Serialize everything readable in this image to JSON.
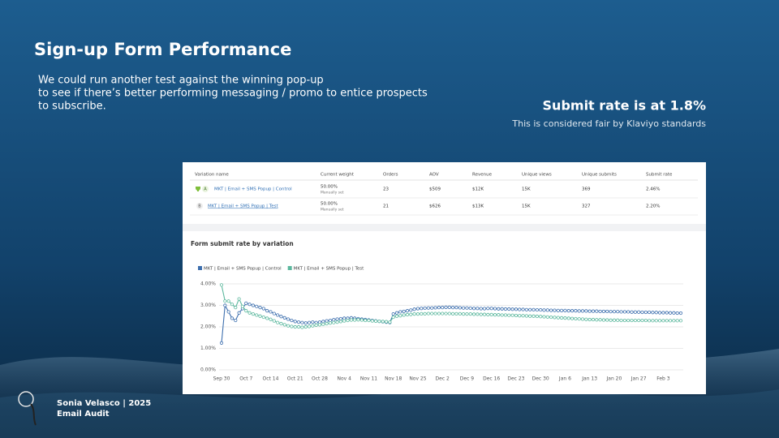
{
  "header": {
    "title": "Sign-up Form Performance",
    "body": [
      "We could run another test against the winning pop-up",
      "to see if there’s better performing messaging / promo to entice prospects",
      "to subscribe."
    ]
  },
  "callout": {
    "headline": "Submit rate is at 1.8%",
    "note": "This is considered fair by Klaviyo standards"
  },
  "table": {
    "headers": [
      "Variation name",
      "Current weight",
      "Orders",
      "AOV",
      "Revenue",
      "Unique views",
      "Unique submits",
      "Submit rate"
    ],
    "rows": [
      {
        "badge": "A",
        "name": "MKT | Email + SMS Popup | Control",
        "weight": "50.00%",
        "weight_note": "Manually set",
        "cells": [
          "23",
          "$509",
          "$12K",
          "15K",
          "369",
          "2.46%"
        ]
      },
      {
        "badge": "B",
        "name": "MKT | Email + SMS Popup | Test",
        "weight": "50.00%",
        "weight_note": "Manually set",
        "cells": [
          "21",
          "$626",
          "$13K",
          "15K",
          "327",
          "2.20%"
        ]
      }
    ]
  },
  "chart_data": {
    "type": "line",
    "title": "Form submit rate by variation",
    "categories": [
      "Sep 30",
      null,
      null,
      null,
      null,
      null,
      null,
      "Oct 7",
      null,
      null,
      null,
      null,
      null,
      null,
      "Oct 14",
      null,
      null,
      null,
      null,
      null,
      null,
      "Oct 21",
      null,
      null,
      null,
      null,
      null,
      null,
      "Oct 28",
      null,
      null,
      null,
      null,
      null,
      null,
      "Nov 4",
      null,
      null,
      null,
      null,
      null,
      null,
      "Nov 11",
      null,
      null,
      null,
      null,
      null,
      null,
      "Nov 18",
      null,
      null,
      null,
      null,
      null,
      null,
      "Nov 25",
      null,
      null,
      null,
      null,
      null,
      null,
      "Dec 2",
      null,
      null,
      null,
      null,
      null,
      null,
      "Dec 9",
      null,
      null,
      null,
      null,
      null,
      null,
      "Dec 16",
      null,
      null,
      null,
      null,
      null,
      null,
      "Dec 23",
      null,
      null,
      null,
      null,
      null,
      null,
      "Dec 30",
      null,
      null,
      null,
      null,
      null,
      null,
      "Jan 6",
      null,
      null,
      null,
      null,
      null,
      null,
      "Jan 13",
      null,
      null,
      null,
      null,
      null,
      null,
      "Jan 20",
      null,
      null,
      null,
      null,
      null,
      null,
      "Jan 27",
      null,
      null,
      null,
      null,
      null,
      null,
      "Feb 3",
      null,
      null,
      null,
      null,
      null
    ],
    "series": [
      {
        "name": "MKT | Email + SMS Popup | Control",
        "color": "#3d6fae",
        "values": [
          1.25,
          3.0,
          2.7,
          2.4,
          2.3,
          2.65,
          2.85,
          3.1,
          3.05,
          3.0,
          2.95,
          2.9,
          2.85,
          2.75,
          2.7,
          2.62,
          2.55,
          2.48,
          2.42,
          2.36,
          2.3,
          2.25,
          2.22,
          2.2,
          2.18,
          2.2,
          2.22,
          2.2,
          2.22,
          2.25,
          2.28,
          2.3,
          2.33,
          2.36,
          2.38,
          2.4,
          2.4,
          2.42,
          2.4,
          2.38,
          2.36,
          2.34,
          2.32,
          2.3,
          2.28,
          2.26,
          2.24,
          2.22,
          2.2,
          2.6,
          2.65,
          2.7,
          2.72,
          2.75,
          2.78,
          2.82,
          2.85,
          2.86,
          2.87,
          2.88,
          2.88,
          2.89,
          2.9,
          2.9,
          2.91,
          2.91,
          2.9,
          2.9,
          2.89,
          2.88,
          2.88,
          2.87,
          2.86,
          2.86,
          2.85,
          2.85,
          2.86,
          2.86,
          2.85,
          2.84,
          2.84,
          2.83,
          2.83,
          2.82,
          2.82,
          2.81,
          2.81,
          2.8,
          2.8,
          2.8,
          2.79,
          2.79,
          2.78,
          2.78,
          2.77,
          2.77,
          2.76,
          2.76,
          2.76,
          2.75,
          2.75,
          2.75,
          2.74,
          2.74,
          2.74,
          2.73,
          2.73,
          2.73,
          2.72,
          2.72,
          2.72,
          2.71,
          2.71,
          2.71,
          2.7,
          2.7,
          2.7,
          2.69,
          2.69,
          2.69,
          2.68,
          2.68,
          2.68,
          2.67,
          2.67,
          2.66,
          2.66,
          2.66,
          2.65,
          2.65,
          2.64,
          2.64
        ]
      },
      {
        "name": "MKT | Email + SMS Popup | Test",
        "color": "#5cb89e",
        "values": [
          3.95,
          3.2,
          3.2,
          3.05,
          2.9,
          3.3,
          2.95,
          2.75,
          2.65,
          2.6,
          2.55,
          2.5,
          2.45,
          2.4,
          2.35,
          2.28,
          2.2,
          2.15,
          2.1,
          2.05,
          2.02,
          2.0,
          2.0,
          1.98,
          2.0,
          2.02,
          2.05,
          2.08,
          2.1,
          2.12,
          2.15,
          2.18,
          2.2,
          2.22,
          2.25,
          2.28,
          2.3,
          2.32,
          2.32,
          2.33,
          2.32,
          2.3,
          2.3,
          2.28,
          2.27,
          2.26,
          2.25,
          2.24,
          2.22,
          2.45,
          2.5,
          2.52,
          2.55,
          2.57,
          2.58,
          2.6,
          2.6,
          2.61,
          2.61,
          2.62,
          2.62,
          2.62,
          2.62,
          2.62,
          2.62,
          2.62,
          2.61,
          2.61,
          2.61,
          2.6,
          2.6,
          2.6,
          2.59,
          2.59,
          2.58,
          2.58,
          2.57,
          2.57,
          2.56,
          2.56,
          2.55,
          2.55,
          2.54,
          2.54,
          2.53,
          2.52,
          2.52,
          2.51,
          2.5,
          2.5,
          2.49,
          2.48,
          2.47,
          2.46,
          2.45,
          2.44,
          2.43,
          2.42,
          2.41,
          2.4,
          2.39,
          2.38,
          2.37,
          2.36,
          2.35,
          2.34,
          2.34,
          2.33,
          2.33,
          2.32,
          2.32,
          2.31,
          2.31,
          2.31,
          2.3,
          2.3,
          2.3,
          2.3,
          2.3,
          2.3,
          2.3,
          2.3,
          2.29,
          2.29,
          2.29,
          2.29,
          2.29,
          2.29,
          2.29,
          2.29,
          2.29,
          2.29
        ]
      }
    ],
    "ylim": [
      0,
      4
    ],
    "yticks": [
      {
        "value": 0,
        "label": "0.00%"
      },
      {
        "value": 1,
        "label": "1.00%"
      },
      {
        "value": 2,
        "label": "2.00%"
      },
      {
        "value": 3,
        "label": "3.00%"
      },
      {
        "value": 4,
        "label": "4.00%"
      }
    ],
    "grid": true,
    "legend": "top-left"
  },
  "footer": {
    "author": "Sonia Velasco | 2025",
    "subtitle": "Email Audit"
  }
}
